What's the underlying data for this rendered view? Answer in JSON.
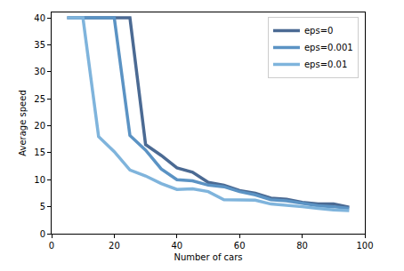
{
  "chart_data": {
    "type": "line",
    "x_label": "Number of cars",
    "y_label": "Average speed",
    "x": [
      5,
      10,
      15,
      20,
      25,
      30,
      35,
      40,
      45,
      50,
      55,
      60,
      65,
      70,
      75,
      80,
      85,
      90,
      95
    ],
    "series": [
      {
        "name": "eps=0",
        "color": "#4b6a93",
        "values": [
          40,
          40,
          40,
          40,
          40,
          16.5,
          14.5,
          12.2,
          11.4,
          9.5,
          9.0,
          8.0,
          7.5,
          6.6,
          6.4,
          5.8,
          5.5,
          5.5,
          4.9
        ]
      },
      {
        "name": "eps=0.001",
        "color": "#5b93c4",
        "values": [
          40,
          40,
          40,
          40,
          18.2,
          15.5,
          12.0,
          10.0,
          9.8,
          9.0,
          8.7,
          7.8,
          7.2,
          6.3,
          6.1,
          5.6,
          5.2,
          5.0,
          4.7
        ]
      },
      {
        "name": "eps=0.01",
        "color": "#7fb4dc",
        "values": [
          40,
          40,
          18.0,
          15.2,
          11.8,
          10.7,
          9.3,
          8.2,
          8.3,
          7.8,
          6.3,
          6.3,
          6.2,
          5.5,
          5.3,
          5.0,
          4.7,
          4.4,
          4.3
        ]
      }
    ],
    "xlim": [
      0,
      100
    ],
    "xticks": [
      0,
      20,
      40,
      60,
      80,
      100
    ],
    "ylim": [
      0,
      41
    ],
    "yticks": [
      0,
      5,
      10,
      15,
      20,
      25,
      30,
      35,
      40
    ],
    "grid": false,
    "legend": "upper right"
  }
}
